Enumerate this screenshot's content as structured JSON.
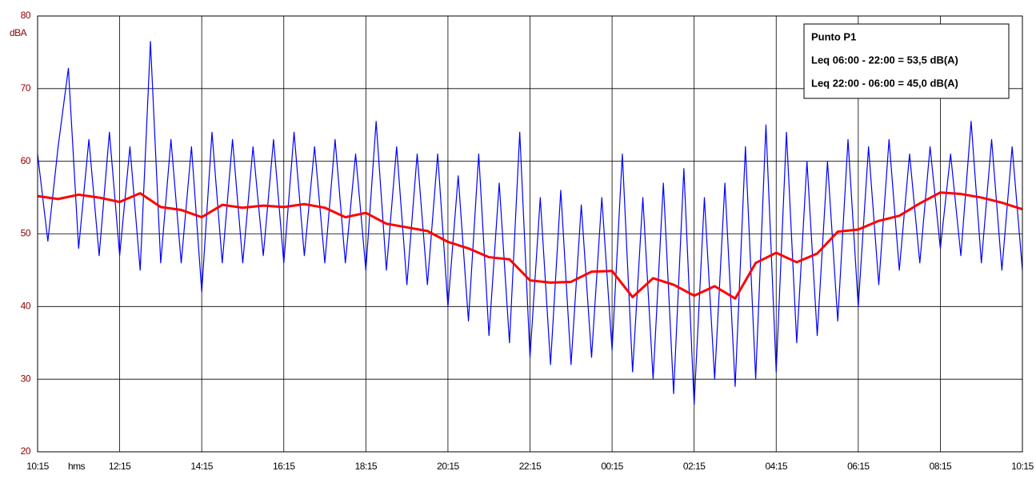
{
  "chart_data": {
    "type": "line",
    "y_label": "dBA",
    "x_label": "hms",
    "annotations": [
      "Punto P1",
      "Leq 06:00 - 22:00 = 53,5 dB(A)",
      "Leq 22:00 - 06:00 = 45,0 dB(A)"
    ],
    "xlim": [
      0,
      24
    ],
    "ylim": [
      20,
      80
    ],
    "grid": true,
    "xticks": [
      {
        "value": 0,
        "label": "10:15"
      },
      {
        "value": 2,
        "label": "12:15"
      },
      {
        "value": 4,
        "label": "14:15"
      },
      {
        "value": 6,
        "label": "16:15"
      },
      {
        "value": 8,
        "label": "18:15"
      },
      {
        "value": 10,
        "label": "20:15"
      },
      {
        "value": 12,
        "label": "22:15"
      },
      {
        "value": 14,
        "label": "00:15"
      },
      {
        "value": 16,
        "label": "02:15"
      },
      {
        "value": 18,
        "label": "04:15"
      },
      {
        "value": 20,
        "label": "06:15"
      },
      {
        "value": 22,
        "label": "08:15"
      },
      {
        "value": 24,
        "label": "10:15"
      }
    ],
    "yticks": [
      20,
      30,
      40,
      50,
      60,
      70,
      80
    ],
    "series": [
      {
        "color": "#0000ff",
        "x": [
          0,
          0.25,
          0.5,
          0.75,
          1,
          1.25,
          1.5,
          1.75,
          2,
          2.25,
          2.5,
          2.75,
          3,
          3.25,
          3.5,
          3.75,
          4,
          4.25,
          4.5,
          4.75,
          5,
          5.25,
          5.5,
          5.75,
          6,
          6.25,
          6.5,
          6.75,
          7,
          7.25,
          7.5,
          7.75,
          8,
          8.25,
          8.5,
          8.75,
          9,
          9.25,
          9.5,
          9.75,
          10,
          10.25,
          10.5,
          10.75,
          11,
          11.25,
          11.5,
          11.75,
          12,
          12.25,
          12.5,
          12.75,
          13,
          13.25,
          13.5,
          13.75,
          14,
          14.25,
          14.5,
          14.75,
          15,
          15.25,
          15.5,
          15.75,
          16,
          16.25,
          16.5,
          16.75,
          17,
          17.25,
          17.5,
          17.75,
          18,
          18.25,
          18.5,
          18.75,
          19,
          19.25,
          19.5,
          19.75,
          20,
          20.25,
          20.5,
          20.75,
          21,
          21.25,
          21.5,
          21.75,
          22,
          22.25,
          22.5,
          22.75,
          23,
          23.25,
          23.5,
          23.75,
          24
        ],
        "values": [
          61,
          49,
          62,
          72.8,
          48,
          63,
          47,
          64,
          47,
          62,
          45,
          76.5,
          46,
          63,
          46,
          62,
          42,
          64,
          46,
          63,
          46,
          62,
          47,
          63,
          46,
          64,
          47,
          62,
          46,
          63,
          46,
          61,
          45,
          65.5,
          45,
          62,
          43,
          61,
          43,
          61,
          40,
          58,
          38,
          61,
          36,
          57,
          35,
          64,
          33,
          55,
          32,
          56,
          32,
          54,
          33,
          55,
          34,
          61,
          31,
          55,
          30,
          57,
          28,
          59,
          26.5,
          55,
          30,
          57,
          29,
          62,
          30,
          65,
          31,
          64,
          35,
          60,
          36,
          60,
          38,
          63,
          40,
          62,
          43,
          63,
          45,
          61,
          46,
          62,
          48,
          61,
          47,
          65.5,
          46,
          63,
          45,
          62,
          45
        ]
      },
      {
        "color": "#ff0000",
        "x": [
          0,
          0.5,
          1,
          1.5,
          2,
          2.5,
          3,
          3.5,
          4,
          4.5,
          5,
          5.5,
          6,
          6.5,
          7,
          7.5,
          8,
          8.5,
          9,
          9.5,
          10,
          10.5,
          11,
          11.5,
          12,
          12.5,
          13,
          13.5,
          14,
          14.5,
          15,
          15.5,
          16,
          16.5,
          17,
          17.5,
          18,
          18.5,
          19,
          19.5,
          20,
          20.5,
          21,
          21.5,
          22,
          22.5,
          23,
          23.5,
          24
        ],
        "values": [
          55.2,
          54.8,
          55.4,
          55.0,
          54.4,
          55.6,
          53.7,
          53.3,
          52.3,
          54.0,
          53.6,
          53.9,
          53.7,
          54.1,
          53.6,
          52.3,
          52.9,
          51.4,
          50.9,
          50.4,
          48.9,
          48.0,
          46.8,
          46.5,
          43.6,
          43.3,
          43.4,
          44.8,
          44.9,
          41.3,
          43.9,
          43.0,
          41.5,
          42.8,
          41.1,
          46.0,
          47.4,
          46.1,
          47.3,
          50.3,
          50.6,
          51.8,
          52.5,
          54.2,
          55.7,
          55.5,
          55.0,
          54.3,
          53.4
        ]
      }
    ]
  }
}
